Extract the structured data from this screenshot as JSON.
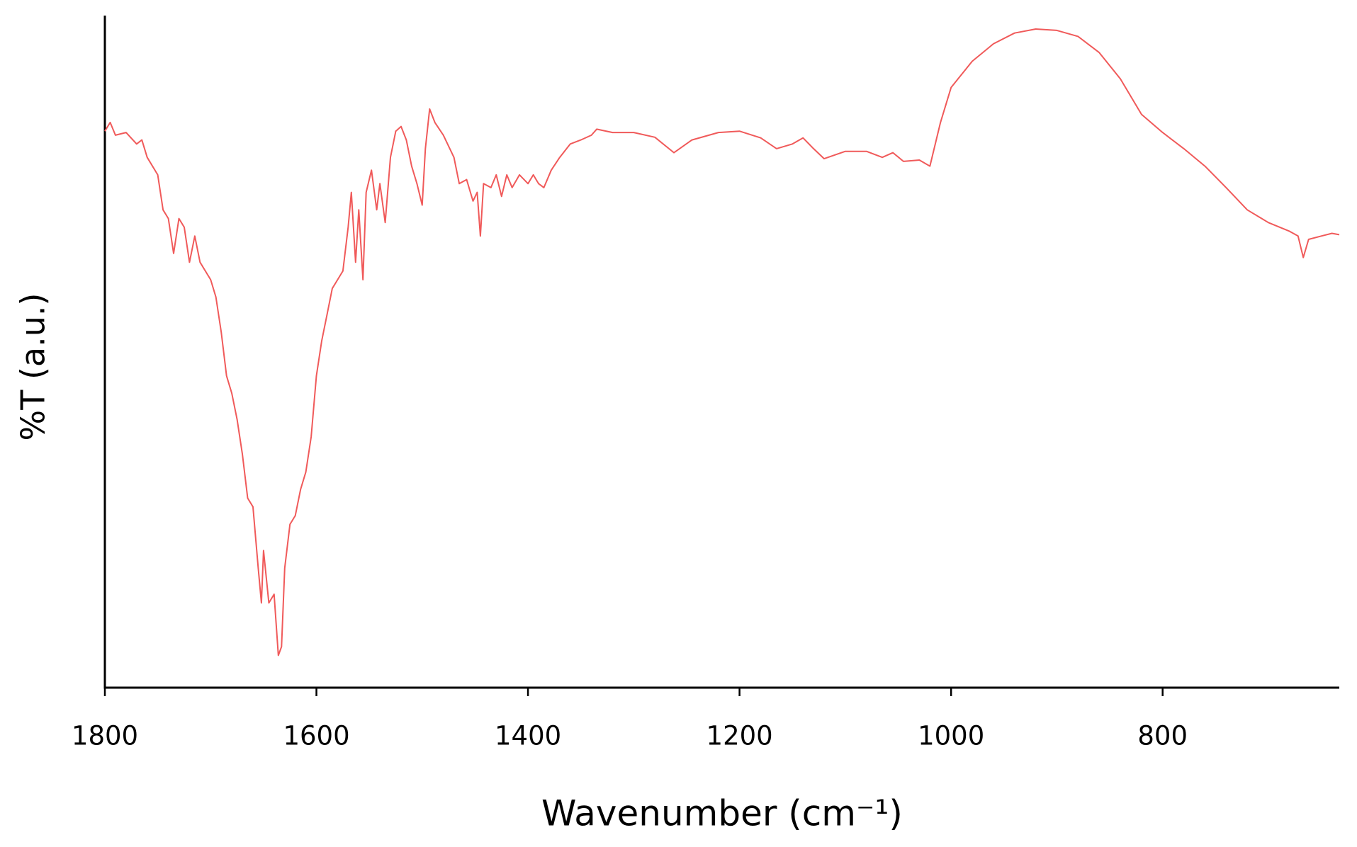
{
  "chart_data": {
    "type": "line",
    "xlabel": "Wavenumber (cm⁻¹)",
    "ylabel": "%T (a.u.)",
    "color": "#f05a5a",
    "xlim": [
      1800,
      633
    ],
    "xticks": [
      1800,
      1600,
      1400,
      1200,
      1000,
      800
    ],
    "ylim": [
      0,
      100
    ],
    "x": [
      1800,
      1795,
      1790,
      1780,
      1770,
      1765,
      1760,
      1750,
      1745,
      1740,
      1735,
      1730,
      1725,
      1720,
      1715,
      1710,
      1700,
      1695,
      1690,
      1685,
      1680,
      1675,
      1670,
      1665,
      1660,
      1655,
      1652,
      1650,
      1645,
      1640,
      1636,
      1633,
      1630,
      1625,
      1620,
      1615,
      1610,
      1605,
      1600,
      1595,
      1590,
      1585,
      1580,
      1575,
      1570,
      1567,
      1563,
      1560,
      1556,
      1553,
      1548,
      1543,
      1540,
      1535,
      1530,
      1525,
      1520,
      1515,
      1510,
      1505,
      1500,
      1497,
      1493,
      1488,
      1480,
      1470,
      1465,
      1458,
      1452,
      1448,
      1445,
      1442,
      1435,
      1430,
      1425,
      1420,
      1415,
      1408,
      1400,
      1395,
      1390,
      1385,
      1378,
      1370,
      1360,
      1350,
      1340,
      1335,
      1320,
      1300,
      1280,
      1262,
      1245,
      1220,
      1200,
      1180,
      1165,
      1150,
      1140,
      1130,
      1120,
      1100,
      1080,
      1065,
      1055,
      1045,
      1030,
      1020,
      1010,
      1000,
      980,
      960,
      940,
      920,
      900,
      880,
      860,
      840,
      820,
      800,
      780,
      760,
      740,
      720,
      700,
      680,
      672,
      667,
      662,
      650,
      640,
      633
    ],
    "values": [
      82.8,
      84.1,
      82.2,
      82.6,
      80.9,
      81.5,
      78.9,
      76.3,
      71.1,
      69.8,
      64.6,
      69.8,
      68.5,
      63.3,
      67.2,
      63.3,
      60.7,
      58.1,
      52.9,
      46.4,
      43.8,
      39.9,
      34.7,
      28.2,
      26.9,
      17.8,
      12.6,
      20.4,
      12.6,
      13.9,
      4.8,
      6.1,
      17.8,
      24.3,
      25.6,
      29.5,
      32.1,
      37.3,
      46.4,
      51.6,
      55.5,
      59.4,
      60.7,
      62.0,
      68.5,
      73.7,
      63.3,
      71.1,
      60.7,
      73.7,
      77.0,
      71.1,
      75.0,
      69.2,
      78.9,
      82.8,
      83.5,
      81.5,
      77.6,
      75.0,
      71.8,
      80.2,
      86.1,
      84.1,
      82.2,
      78.9,
      75.0,
      75.6,
      72.4,
      73.7,
      67.2,
      75.0,
      74.4,
      76.3,
      73.1,
      76.3,
      74.4,
      76.3,
      75.0,
      76.3,
      75.0,
      74.4,
      77.0,
      78.9,
      80.9,
      81.5,
      82.2,
      83.1,
      82.6,
      82.6,
      81.9,
      79.6,
      81.5,
      82.6,
      82.8,
      81.8,
      80.2,
      80.9,
      81.8,
      80.2,
      78.7,
      79.8,
      79.8,
      78.9,
      79.6,
      78.3,
      78.5,
      77.6,
      84.1,
      89.3,
      93.2,
      95.8,
      97.4,
      98.0,
      97.8,
      96.9,
      94.5,
      90.6,
      85.3,
      82.6,
      80.2,
      77.6,
      74.4,
      71.1,
      69.2,
      67.9,
      67.2,
      64.0,
      66.7,
      67.2,
      67.6,
      67.4
    ]
  }
}
